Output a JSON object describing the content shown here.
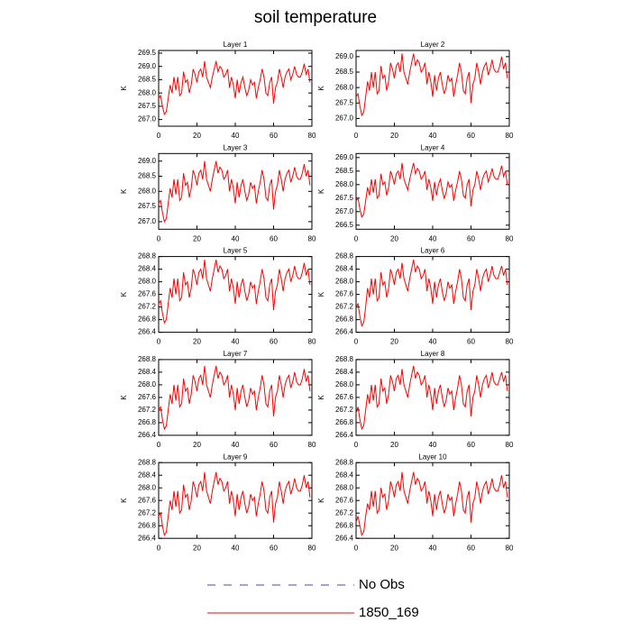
{
  "title": "soil temperature",
  "chart_data": {
    "type": "line",
    "ylabel": "K",
    "color": "#ff0000",
    "xlim": [
      0,
      80
    ],
    "xticks": [
      0,
      20,
      40,
      60,
      80
    ],
    "x": [
      0,
      1,
      2,
      3,
      4,
      5,
      6,
      7,
      8,
      9,
      10,
      11,
      12,
      13,
      14,
      15,
      16,
      17,
      18,
      19,
      20,
      21,
      22,
      23,
      24,
      25,
      26,
      27,
      28,
      29,
      30,
      31,
      32,
      33,
      34,
      35,
      36,
      37,
      38,
      39,
      40,
      41,
      42,
      43,
      44,
      45,
      46,
      47,
      48,
      49,
      50,
      51,
      52,
      53,
      54,
      55,
      56,
      57,
      58,
      59,
      60,
      61,
      62,
      63,
      64,
      65,
      66,
      67,
      68,
      69,
      70,
      71,
      72,
      73,
      74,
      75,
      76,
      77,
      78,
      79
    ],
    "legend": [
      {
        "name": "No Obs",
        "color": "#4848a8",
        "dash": "9 9"
      },
      {
        "name": "1850_169",
        "color": "#ff0000"
      }
    ],
    "panels": [
      {
        "title": "Layer 1",
        "ylim": [
          266.75,
          269.6
        ],
        "yticks": [
          {
            "value": 267,
            "label": "267.0"
          },
          267.5,
          {
            "value": 268,
            "label": "268.0"
          },
          268.5,
          {
            "value": 269,
            "label": "269.0"
          },
          269.5
        ],
        "values": [
          267.8,
          267.9,
          267.5,
          267.2,
          267.3,
          267.8,
          268.3,
          268.0,
          268.6,
          268.1,
          268.6,
          267.9,
          268.0,
          268.8,
          268.4,
          268.5,
          268.0,
          268.3,
          268.9,
          268.7,
          268.4,
          268.8,
          268.9,
          268.6,
          269.2,
          268.6,
          268.4,
          268.2,
          268.6,
          268.9,
          269.2,
          268.8,
          269.0,
          268.9,
          268.6,
          268.7,
          268.9,
          268.2,
          268.6,
          268.3,
          267.8,
          268.5,
          268.0,
          268.4,
          268.6,
          268.2,
          267.9,
          268.1,
          268.5,
          268.3,
          268.4,
          267.8,
          268.2,
          268.5,
          268.9,
          268.6,
          268.0,
          267.9,
          268.4,
          268.6,
          267.6,
          268.2,
          268.4,
          268.9,
          268.6,
          268.2,
          268.6,
          268.8,
          268.9,
          268.5,
          268.7,
          269.0,
          268.7,
          268.6,
          268.6,
          268.8,
          269.1,
          268.7,
          268.9,
          268.4
        ]
      },
      {
        "title": "Layer 2",
        "ylim": [
          266.75,
          269.2
        ],
        "yticks": [
          {
            "value": 267,
            "label": "267.0"
          },
          267.5,
          {
            "value": 268,
            "label": "268.0"
          },
          268.5,
          {
            "value": 269,
            "label": "269.0"
          }
        ],
        "values": [
          267.7,
          267.8,
          267.4,
          267.1,
          267.2,
          267.7,
          268.2,
          267.9,
          268.5,
          268.0,
          268.5,
          267.8,
          267.9,
          268.7,
          268.3,
          268.4,
          267.9,
          268.2,
          268.8,
          268.6,
          268.3,
          268.7,
          268.8,
          268.5,
          269.1,
          268.5,
          268.3,
          268.1,
          268.5,
          268.8,
          269.1,
          268.7,
          268.9,
          268.8,
          268.5,
          268.6,
          268.8,
          268.1,
          268.5,
          268.2,
          267.7,
          268.4,
          267.9,
          268.3,
          268.5,
          268.1,
          267.8,
          268.0,
          268.4,
          268.2,
          268.3,
          267.7,
          268.1,
          268.4,
          268.8,
          268.5,
          267.9,
          267.8,
          268.3,
          268.5,
          267.5,
          268.1,
          268.3,
          268.8,
          268.5,
          268.1,
          268.5,
          268.7,
          268.8,
          268.4,
          268.6,
          268.9,
          268.6,
          268.5,
          268.5,
          268.7,
          269.0,
          268.6,
          268.8,
          268.3
        ]
      },
      {
        "title": "Layer 3",
        "ylim": [
          266.75,
          269.25
        ],
        "yticks": [
          {
            "value": 267,
            "label": "267.0"
          },
          267.5,
          {
            "value": 268,
            "label": "268.0"
          },
          268.5,
          {
            "value": 269,
            "label": "269.0"
          }
        ],
        "values": [
          267.6,
          267.7,
          267.3,
          267.0,
          267.1,
          267.6,
          268.1,
          267.8,
          268.4,
          267.9,
          268.4,
          267.7,
          267.8,
          268.6,
          268.2,
          268.3,
          267.8,
          268.1,
          268.7,
          268.5,
          268.2,
          268.6,
          268.7,
          268.4,
          269.0,
          268.4,
          268.2,
          268.0,
          268.4,
          268.7,
          269.0,
          268.6,
          268.8,
          268.7,
          268.4,
          268.5,
          268.7,
          268.0,
          268.4,
          268.1,
          267.6,
          268.3,
          267.8,
          268.2,
          268.4,
          268.0,
          267.7,
          267.9,
          268.3,
          268.1,
          268.2,
          267.6,
          268.0,
          268.3,
          268.7,
          268.4,
          267.8,
          267.7,
          268.2,
          268.4,
          267.4,
          268.0,
          268.2,
          268.7,
          268.4,
          268.0,
          268.4,
          268.6,
          268.7,
          268.3,
          268.5,
          268.8,
          268.5,
          268.4,
          268.4,
          268.6,
          268.9,
          268.5,
          268.7,
          268.2
        ]
      },
      {
        "title": "Layer 4",
        "ylim": [
          266.35,
          269.15
        ],
        "yticks": [
          266.5,
          {
            "value": 267,
            "label": "267.0"
          },
          267.5,
          {
            "value": 268,
            "label": "268.0"
          },
          268.5,
          {
            "value": 269,
            "label": "269.0"
          }
        ],
        "values": [
          267.4,
          267.5,
          267.1,
          266.8,
          266.9,
          267.4,
          267.9,
          267.6,
          268.2,
          267.7,
          268.2,
          267.5,
          267.6,
          268.4,
          268.0,
          268.1,
          267.6,
          267.9,
          268.5,
          268.3,
          268.0,
          268.4,
          268.5,
          268.2,
          268.8,
          268.2,
          268.0,
          267.8,
          268.2,
          268.5,
          268.8,
          268.4,
          268.6,
          268.5,
          268.2,
          268.3,
          268.5,
          267.8,
          268.2,
          267.9,
          267.4,
          268.1,
          267.6,
          268.0,
          268.2,
          267.8,
          267.5,
          267.7,
          268.1,
          267.9,
          268.0,
          267.4,
          267.8,
          268.1,
          268.5,
          268.2,
          267.6,
          267.5,
          268.0,
          268.2,
          267.2,
          267.8,
          268.0,
          268.5,
          268.2,
          267.8,
          268.2,
          268.4,
          268.5,
          268.1,
          268.3,
          268.6,
          268.3,
          268.2,
          268.2,
          268.4,
          268.7,
          268.3,
          268.5,
          268.0
        ]
      },
      {
        "title": "Layer 5",
        "ylim": [
          266.4,
          268.8
        ],
        "yticks": [
          266.4,
          266.8,
          267.2,
          267.6,
          {
            "value": 268,
            "label": "268.0"
          },
          268.4,
          268.8
        ],
        "values": [
          267.3,
          267.4,
          267.0,
          266.7,
          266.8,
          267.3,
          267.8,
          267.5,
          268.1,
          267.6,
          268.1,
          267.4,
          267.5,
          268.3,
          267.9,
          268.0,
          267.5,
          267.8,
          268.4,
          268.2,
          267.9,
          268.3,
          268.4,
          268.1,
          268.7,
          268.1,
          267.9,
          267.7,
          268.1,
          268.4,
          268.7,
          268.3,
          268.5,
          268.4,
          268.1,
          268.2,
          268.4,
          267.7,
          268.1,
          267.8,
          267.3,
          268.0,
          267.5,
          267.9,
          268.1,
          267.7,
          267.4,
          267.6,
          268.0,
          267.8,
          267.9,
          267.3,
          267.7,
          268.0,
          268.4,
          268.1,
          267.5,
          267.4,
          267.9,
          268.1,
          267.1,
          267.7,
          267.9,
          268.4,
          268.1,
          267.7,
          268.1,
          268.3,
          268.4,
          268.0,
          268.2,
          268.5,
          268.2,
          268.1,
          268.1,
          268.3,
          268.6,
          268.2,
          268.4,
          267.9
        ]
      },
      {
        "title": "Layer 6",
        "ylim": [
          266.4,
          268.8
        ],
        "yticks": [
          266.4,
          266.8,
          267.2,
          267.6,
          {
            "value": 268,
            "label": "268.0"
          },
          268.4,
          268.8
        ],
        "values": [
          267.2,
          267.3,
          266.9,
          266.6,
          266.7,
          267.2,
          267.8,
          267.5,
          268.1,
          267.6,
          268.1,
          267.4,
          267.5,
          268.3,
          267.9,
          268.0,
          267.5,
          267.8,
          268.4,
          268.2,
          267.9,
          268.3,
          268.4,
          268.1,
          268.6,
          268.1,
          267.9,
          267.7,
          268.1,
          268.4,
          268.7,
          268.3,
          268.5,
          268.4,
          268.1,
          268.2,
          268.4,
          267.7,
          268.1,
          267.8,
          267.3,
          268.0,
          267.5,
          267.9,
          268.1,
          267.7,
          267.4,
          267.6,
          268.0,
          267.8,
          267.9,
          267.3,
          267.7,
          268.0,
          268.4,
          268.1,
          267.5,
          267.4,
          267.9,
          268.1,
          267.1,
          267.7,
          267.9,
          268.4,
          268.1,
          267.7,
          268.1,
          268.3,
          268.4,
          268.0,
          268.2,
          268.5,
          268.2,
          268.1,
          268.1,
          268.3,
          268.5,
          268.2,
          268.4,
          267.9
        ]
      },
      {
        "title": "Layer 7",
        "ylim": [
          266.4,
          268.8
        ],
        "yticks": [
          266.4,
          266.8,
          267.2,
          267.6,
          {
            "value": 268,
            "label": "268.0"
          },
          268.4,
          268.8
        ],
        "values": [
          267.2,
          267.3,
          266.9,
          266.6,
          266.7,
          267.2,
          267.7,
          267.4,
          268.0,
          267.5,
          268.0,
          267.3,
          267.4,
          268.2,
          267.8,
          267.9,
          267.4,
          267.7,
          268.3,
          268.1,
          267.8,
          268.2,
          268.3,
          268.0,
          268.6,
          268.0,
          267.8,
          267.6,
          268.0,
          268.3,
          268.6,
          268.2,
          268.4,
          268.3,
          268.0,
          268.1,
          268.3,
          267.6,
          268.0,
          267.7,
          267.2,
          267.9,
          267.4,
          267.8,
          268.0,
          267.6,
          267.3,
          267.5,
          267.9,
          267.7,
          267.8,
          267.2,
          267.6,
          267.9,
          268.3,
          268.0,
          267.4,
          267.3,
          267.8,
          268.0,
          267.0,
          267.6,
          267.8,
          268.3,
          268.0,
          267.6,
          268.0,
          268.2,
          268.3,
          267.9,
          268.1,
          268.4,
          268.1,
          268.0,
          268.0,
          268.2,
          268.5,
          268.1,
          268.3,
          267.8
        ]
      },
      {
        "title": "Layer 8",
        "ylim": [
          266.4,
          268.8
        ],
        "yticks": [
          266.4,
          266.8,
          267.2,
          267.6,
          {
            "value": 268,
            "label": "268.0"
          },
          268.4,
          268.8
        ],
        "values": [
          267.1,
          267.3,
          266.9,
          266.6,
          266.7,
          267.2,
          267.7,
          267.4,
          268.0,
          267.5,
          268.0,
          267.3,
          267.4,
          268.2,
          267.8,
          267.9,
          267.4,
          267.7,
          268.3,
          268.1,
          267.8,
          268.2,
          268.3,
          268.0,
          268.5,
          268.0,
          267.8,
          267.6,
          268.0,
          268.3,
          268.6,
          268.2,
          268.4,
          268.3,
          268.0,
          268.1,
          268.3,
          267.6,
          268.0,
          267.7,
          267.2,
          267.9,
          267.4,
          267.8,
          268.0,
          267.6,
          267.3,
          267.5,
          267.9,
          267.7,
          267.8,
          267.2,
          267.6,
          267.9,
          268.3,
          268.0,
          267.4,
          267.3,
          267.8,
          268.0,
          267.0,
          267.6,
          267.8,
          268.3,
          268.0,
          267.6,
          268.0,
          268.2,
          268.3,
          267.9,
          268.1,
          268.4,
          268.1,
          268.0,
          268.0,
          268.2,
          268.4,
          268.1,
          268.3,
          267.8
        ]
      },
      {
        "title": "Layer 9",
        "ylim": [
          266.4,
          268.8
        ],
        "yticks": [
          266.4,
          266.8,
          267.2,
          267.6,
          {
            "value": 268,
            "label": "268.0"
          },
          268.4,
          268.8
        ],
        "values": [
          267.1,
          267.2,
          266.8,
          266.5,
          266.6,
          267.1,
          267.6,
          267.3,
          267.9,
          267.4,
          267.9,
          267.2,
          267.3,
          268.1,
          267.7,
          267.8,
          267.3,
          267.6,
          268.2,
          268.0,
          267.7,
          268.1,
          268.2,
          267.9,
          268.5,
          267.9,
          267.7,
          267.5,
          267.9,
          268.2,
          268.5,
          268.1,
          268.3,
          268.2,
          267.9,
          268.0,
          268.2,
          267.5,
          267.9,
          267.6,
          267.1,
          267.8,
          267.3,
          267.7,
          267.9,
          267.5,
          267.2,
          267.4,
          267.8,
          267.6,
          267.7,
          267.1,
          267.5,
          267.8,
          268.2,
          267.9,
          267.3,
          267.2,
          267.7,
          267.9,
          266.9,
          267.5,
          267.7,
          268.2,
          267.9,
          267.5,
          267.9,
          268.1,
          268.2,
          267.8,
          268.0,
          268.3,
          268.0,
          267.9,
          267.9,
          268.1,
          268.4,
          268.0,
          268.2,
          267.7
        ]
      },
      {
        "title": "Layer 10",
        "ylim": [
          266.4,
          268.8
        ],
        "yticks": [
          266.4,
          266.8,
          267.2,
          267.6,
          {
            "value": 268,
            "label": "268.0"
          },
          268.4,
          268.8
        ],
        "values": [
          266.9,
          267.1,
          266.8,
          266.5,
          266.6,
          267.1,
          267.5,
          267.3,
          267.9,
          267.4,
          267.9,
          267.2,
          267.3,
          268.0,
          267.7,
          267.8,
          267.3,
          267.6,
          268.2,
          268.0,
          267.7,
          268.1,
          268.2,
          267.9,
          268.5,
          267.9,
          267.7,
          267.5,
          267.9,
          268.2,
          268.5,
          268.1,
          268.3,
          268.2,
          267.9,
          268.0,
          268.2,
          267.5,
          267.9,
          267.6,
          267.1,
          267.8,
          267.3,
          267.7,
          267.9,
          267.5,
          267.2,
          267.4,
          267.8,
          267.6,
          267.7,
          267.1,
          267.5,
          267.8,
          268.2,
          267.9,
          267.3,
          267.2,
          267.7,
          267.9,
          266.9,
          267.5,
          267.7,
          268.2,
          267.9,
          267.5,
          267.9,
          268.1,
          268.2,
          267.8,
          268.0,
          268.3,
          268.0,
          267.9,
          267.9,
          268.1,
          268.4,
          268.0,
          268.2,
          267.7
        ]
      }
    ]
  }
}
